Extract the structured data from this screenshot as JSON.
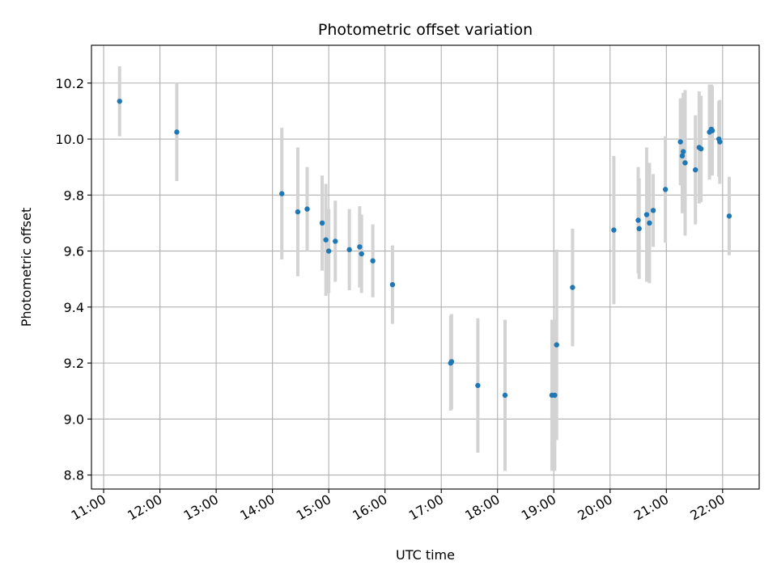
{
  "chart_data": {
    "type": "scatter",
    "title": "Photometric offset variation",
    "xlabel": "UTC time",
    "ylabel": "Photometric offset",
    "grid": true,
    "xlim": [
      "10:47",
      "22:39"
    ],
    "ylim": [
      8.75,
      10.335
    ],
    "x_ticks": [
      "11:00",
      "12:00",
      "13:00",
      "14:00",
      "15:00",
      "16:00",
      "17:00",
      "18:00",
      "19:00",
      "20:00",
      "21:00",
      "22:00"
    ],
    "y_ticks": [
      "8.8",
      "9.0",
      "9.2",
      "9.4",
      "9.6",
      "9.8",
      "10.0",
      "10.2"
    ],
    "colors": {
      "point": "#1f77b4",
      "errorbar": "#d3d3d3",
      "grid": "#b0b0b0"
    },
    "series": [
      {
        "x": [
          "11:17",
          "12:18",
          "14:10",
          "14:27",
          "14:37",
          "14:53",
          "14:57",
          "15:00",
          "15:07",
          "15:22",
          "15:33",
          "15:35",
          "15:47",
          "16:08",
          "17:10",
          "17:11",
          "17:39",
          "18:08",
          "18:58",
          "19:01",
          "19:03",
          "19:20",
          "20:04",
          "20:30",
          "20:31",
          "20:39",
          "20:42",
          "20:46",
          "20:59",
          "21:15",
          "21:17",
          "21:18",
          "21:20",
          "21:31",
          "21:35",
          "21:37",
          "21:46",
          "21:48",
          "21:49",
          "21:56",
          "21:57",
          "22:07"
        ],
        "y": [
          10.135,
          10.025,
          9.805,
          9.74,
          9.75,
          9.7,
          9.64,
          9.6,
          9.635,
          9.605,
          9.615,
          9.59,
          9.565,
          9.48,
          9.2,
          9.205,
          9.12,
          9.085,
          9.085,
          9.085,
          9.265,
          9.47,
          9.675,
          9.71,
          9.68,
          9.73,
          9.7,
          9.745,
          9.82,
          9.99,
          9.94,
          9.955,
          9.915,
          9.89,
          9.97,
          9.965,
          10.025,
          10.035,
          10.03,
          10.0,
          9.99,
          9.725
        ],
        "err": [
          0.125,
          0.175,
          0.235,
          0.23,
          0.15,
          0.17,
          0.2,
          0.15,
          0.145,
          0.145,
          0.145,
          0.14,
          0.13,
          0.14,
          0.17,
          0.17,
          0.24,
          0.27,
          0.27,
          0.27,
          0.34,
          0.21,
          0.265,
          0.19,
          0.18,
          0.24,
          0.215,
          0.13,
          0.19,
          0.155,
          0.205,
          0.21,
          0.26,
          0.195,
          0.2,
          0.19,
          0.17,
          0.16,
          0.16,
          0.135,
          0.15,
          0.14
        ]
      }
    ]
  }
}
